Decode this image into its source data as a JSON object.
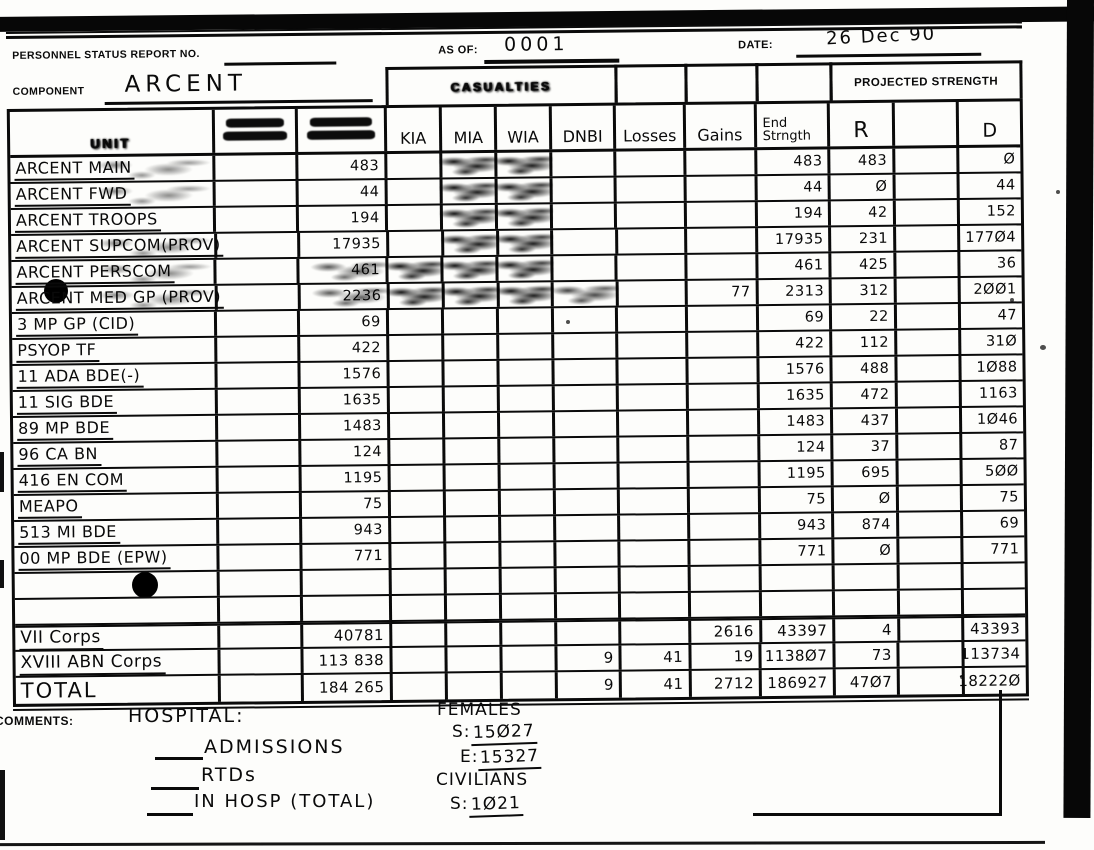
{
  "form": {
    "report_no_label": "PERSONNEL STATUS REPORT NO.",
    "as_of_label": "AS OF:",
    "as_of_value": "0001",
    "date_label": "DATE:",
    "date_value": "26 Dec 90",
    "component_label": "COMPONENT",
    "component_value": "ARCENT",
    "casualties_label": "CASUALTIES",
    "projected_strength_label": "PROJECTED STRENGTH"
  },
  "table": {
    "headers": {
      "unit": "UNIT",
      "auth": "",
      "start": "",
      "kia": "KIA",
      "mia": "MIA",
      "wia": "WIA",
      "dnbi": "DNBI",
      "losses": "Losses",
      "gains": "Gains",
      "end_line1": "End",
      "end_line2": "Strngth",
      "r": "R",
      "blank": "",
      "d": "D"
    },
    "rows": [
      {
        "unit": "ARCENT MAIN",
        "start": "483",
        "end": "483",
        "r": "483",
        "d": "Ø",
        "smudge": [
          "unit",
          "mia",
          "wia"
        ]
      },
      {
        "unit": "ARCENT FWD",
        "start": "44",
        "end": "44",
        "r": "Ø",
        "d": "44",
        "smudge": [
          "unit",
          "mia",
          "wia"
        ]
      },
      {
        "unit": "ARCENT TROOPS",
        "start": "194",
        "end": "194",
        "r": "42",
        "d": "152",
        "smudge": [
          "mia",
          "wia"
        ]
      },
      {
        "unit": "ARCENT SUPCOM(PROV)",
        "start": "17935",
        "end": "17935",
        "r": "231",
        "d": "177Ø4",
        "smudge": [
          "unit",
          "mia",
          "wia"
        ]
      },
      {
        "unit": "ARCENT PERSCOM",
        "start": "461",
        "end": "461",
        "r": "425",
        "d": "36",
        "smudge": [
          "unit",
          "start",
          "kia",
          "mia",
          "wia"
        ]
      },
      {
        "unit": "ARCENT MED GP (PROV)",
        "start": "2236",
        "gains": "77",
        "end": "2313",
        "r": "312",
        "d": "2ØØ1",
        "smudge": [
          "unit",
          "start",
          "kia",
          "mia",
          "wia",
          "dnbi"
        ]
      },
      {
        "unit": "3 MP GP (CID)",
        "start": "69",
        "end": "69",
        "r": "22",
        "d": "47"
      },
      {
        "unit": "PSYOP TF",
        "start": "422",
        "end": "422",
        "r": "112",
        "d": "31Ø"
      },
      {
        "unit": "11 ADA BDE(-)",
        "start": "1576",
        "end": "1576",
        "r": "488",
        "d": "1Ø88"
      },
      {
        "unit": "11 SIG BDE",
        "start": "1635",
        "end": "1635",
        "r": "472",
        "d": "1163"
      },
      {
        "unit": "89 MP BDE",
        "start": "1483",
        "end": "1483",
        "r": "437",
        "d": "1Ø46"
      },
      {
        "unit": "96 CA BN",
        "start": "124",
        "end": "124",
        "r": "37",
        "d": "87"
      },
      {
        "unit": "416 EN COM",
        "start": "1195",
        "end": "1195",
        "r": "695",
        "d": "5ØØ"
      },
      {
        "unit": "MEAPO",
        "start": "75",
        "end": "75",
        "r": "Ø",
        "d": "75"
      },
      {
        "unit": "513 MI BDE",
        "start": "943",
        "end": "943",
        "r": "874",
        "d": "69"
      },
      {
        "unit": "00 MP BDE (EPW)",
        "start": "771",
        "end": "771",
        "r": "Ø",
        "d": "771"
      },
      {
        "unit": "",
        "type": "blank"
      },
      {
        "unit": "",
        "type": "blank"
      },
      {
        "unit": "VII Corps",
        "start": "40781",
        "gains": "2616",
        "end": "43397",
        "r": "4",
        "d": "43393",
        "type": "summary"
      },
      {
        "unit": "XVIII ABN Corps",
        "start": "113 838",
        "dnbi": "9",
        "losses": "41",
        "gains": "19",
        "end": "1138Ø7",
        "r": "73",
        "d": "113734",
        "type": "summary"
      },
      {
        "unit": "TOTAL",
        "start": "184 265",
        "dnbi": "9",
        "losses": "41",
        "gains": "2712",
        "end": "186927",
        "r": "47Ø7",
        "d": "18222Ø",
        "type": "total"
      }
    ]
  },
  "comments": {
    "label": "COMMENTS:",
    "hospital_heading": "HOSPITAL:",
    "hospital_line1": "ADMISSIONS",
    "hospital_line2": "RTDs",
    "hospital_line3": "IN HOSP (TOTAL)",
    "females_heading": "FEMALES",
    "females_s_label": "S:",
    "females_s_value": "15Ø27",
    "females_e_label": "E:",
    "females_e_value": "15327",
    "civilians_heading": "CIVILIANS",
    "civilians_s_label": "S:",
    "civilians_s_value": "1Ø21"
  }
}
